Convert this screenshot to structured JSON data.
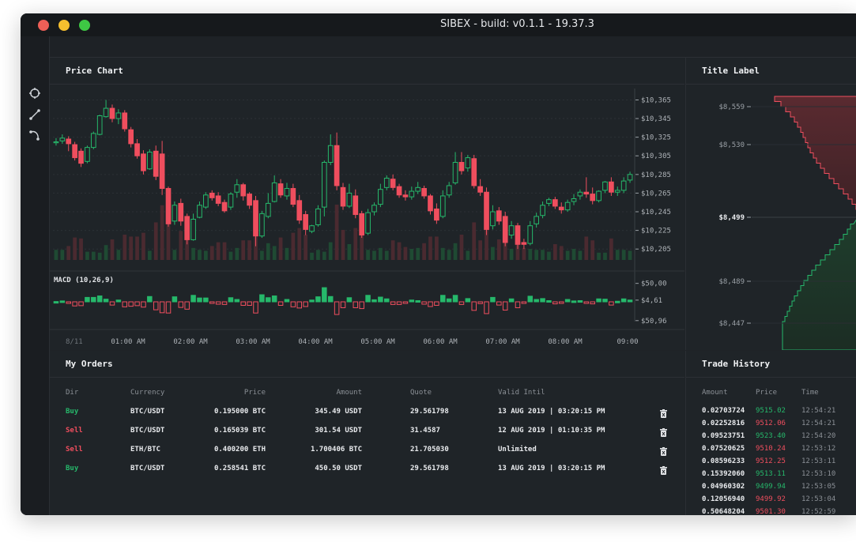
{
  "window": {
    "title": "SIBEX - build: v0.1.1 - 19.37.3",
    "traffic_lights": {
      "close": "#ee5f57",
      "minimize": "#f6bf2e",
      "zoom": "#3ec744"
    }
  },
  "toolbar": {
    "tools": [
      "crosshair-icon",
      "line-tool-icon",
      "curve-tool-icon"
    ]
  },
  "colors": {
    "up": "#26b86b",
    "down": "#ef4e5e",
    "background": "#1f2327"
  },
  "price_chart": {
    "title": "Price Chart",
    "macd_label": "MACD (10,26,9)",
    "price_ticks": [
      "$10,365",
      "$10,345",
      "$10,325",
      "$10,305",
      "$10,285",
      "$10,265",
      "$10,245",
      "$10,225",
      "$10,205"
    ],
    "macd_ticks": [
      "$50,00",
      "$4,61",
      "$50,96"
    ],
    "time_ticks": [
      "8/11",
      "01:00 AM",
      "02:00 AM",
      "03:00 AM",
      "04:00 AM",
      "05:00 AM",
      "06:00 AM",
      "07:00 AM",
      "08:00 AM",
      "09:00"
    ]
  },
  "chart_data": {
    "type": "candlestick",
    "title": "Price Chart",
    "ylim": [
      10195,
      10373
    ],
    "x_ticks": [
      "8/11",
      "01:00 AM",
      "02:00 AM",
      "03:00 AM",
      "04:00 AM",
      "05:00 AM",
      "06:00 AM",
      "07:00 AM",
      "08:00 AM",
      "09:00"
    ],
    "candles": [
      [
        10319,
        10324,
        10320,
        10316
      ],
      [
        10321,
        10328,
        10324,
        10318
      ],
      [
        10323,
        10326,
        10318,
        10310
      ],
      [
        10317,
        10320,
        10303,
        10300
      ],
      [
        10310,
        10313,
        10297,
        10293
      ],
      [
        10299,
        10316,
        10314,
        10297
      ],
      [
        10314,
        10331,
        10329,
        10312
      ],
      [
        10328,
        10349,
        10348,
        10327
      ],
      [
        10347,
        10365,
        10356,
        10346
      ],
      [
        10356,
        10360,
        10345,
        10341
      ],
      [
        10345,
        10355,
        10351,
        10339
      ],
      [
        10351,
        10354,
        10334,
        10331
      ],
      [
        10333,
        10336,
        10318,
        10314
      ],
      [
        10318,
        10323,
        10305,
        10302
      ],
      [
        10307,
        10311,
        10289,
        10285
      ],
      [
        10291,
        10312,
        10309,
        10290
      ],
      [
        10310,
        10316,
        10283,
        10279
      ],
      [
        10307,
        10321,
        10270,
        10263
      ],
      [
        10270,
        10272,
        10232,
        10229
      ],
      [
        10235,
        10256,
        10252,
        10231
      ],
      [
        10254,
        10259,
        10235,
        10230
      ],
      [
        10240,
        10243,
        10215,
        10210
      ],
      [
        10215,
        10243,
        10237,
        10214
      ],
      [
        10239,
        10256,
        10252,
        10238
      ],
      [
        10250,
        10266,
        10263,
        10248
      ],
      [
        10265,
        10268,
        10260,
        10257
      ],
      [
        10262,
        10266,
        10254,
        10251
      ],
      [
        10255,
        10258,
        10246,
        10244
      ],
      [
        10250,
        10266,
        10264,
        10247
      ],
      [
        10266,
        10280,
        10274,
        10260
      ],
      [
        10274,
        10276,
        10262,
        10257
      ],
      [
        10264,
        10266,
        10252,
        10248
      ],
      [
        10257,
        10262,
        10219,
        10208
      ],
      [
        10219,
        10246,
        10243,
        10217
      ],
      [
        10240,
        10265,
        10254,
        10238
      ],
      [
        10256,
        10284,
        10276,
        10255
      ],
      [
        10275,
        10280,
        10263,
        10260
      ],
      [
        10262,
        10276,
        10270,
        10258
      ],
      [
        10270,
        10275,
        10253,
        10250
      ],
      [
        10257,
        10263,
        10236,
        10232
      ],
      [
        10242,
        10246,
        10226,
        10220
      ],
      [
        10224,
        10231,
        10230,
        10222
      ],
      [
        10231,
        10252,
        10248,
        10229
      ],
      [
        10250,
        10300,
        10298,
        10240
      ],
      [
        10298,
        10328,
        10316,
        10295
      ],
      [
        10316,
        10330,
        10273,
        10268
      ],
      [
        10271,
        10276,
        10251,
        10247
      ],
      [
        10251,
        10275,
        10265,
        10249
      ],
      [
        10262,
        10269,
        10242,
        10238
      ],
      [
        10243,
        10246,
        10220,
        10217
      ],
      [
        10222,
        10248,
        10244,
        10220
      ],
      [
        10245,
        10255,
        10252,
        10241
      ],
      [
        10253,
        10275,
        10269,
        10250
      ],
      [
        10271,
        10284,
        10281,
        10268
      ],
      [
        10280,
        10285,
        10271,
        10268
      ],
      [
        10272,
        10275,
        10263,
        10260
      ],
      [
        10263,
        10268,
        10261,
        10257
      ],
      [
        10261,
        10272,
        10267,
        10258
      ],
      [
        10267,
        10277,
        10271,
        10264
      ],
      [
        10270,
        10273,
        10262,
        10259
      ],
      [
        10262,
        10264,
        10246,
        10242
      ],
      [
        10248,
        10254,
        10236,
        10232
      ],
      [
        10240,
        10268,
        10262,
        10238
      ],
      [
        10263,
        10277,
        10273,
        10260
      ],
      [
        10276,
        10309,
        10298,
        10274
      ],
      [
        10298,
        10309,
        10289,
        10285
      ],
      [
        10292,
        10306,
        10303,
        10288
      ],
      [
        10302,
        10306,
        10273,
        10270
      ],
      [
        10272,
        10280,
        10266,
        10262
      ],
      [
        10266,
        10271,
        10226,
        10220
      ],
      [
        10230,
        10252,
        10245,
        10226
      ],
      [
        10246,
        10250,
        10235,
        10231
      ],
      [
        10240,
        10245,
        10212,
        10208
      ],
      [
        10220,
        10235,
        10230,
        10216
      ],
      [
        10230,
        10233,
        10210,
        10205
      ],
      [
        10212,
        10216,
        10210,
        10205
      ],
      [
        10211,
        10235,
        10230,
        10209
      ],
      [
        10232,
        10244,
        10240,
        10228
      ],
      [
        10241,
        10256,
        10252,
        10238
      ],
      [
        10254,
        10260,
        10258,
        10251
      ],
      [
        10258,
        10261,
        10251,
        10248
      ],
      [
        10250,
        10255,
        10247,
        10243
      ],
      [
        10247,
        10258,
        10255,
        10245
      ],
      [
        10256,
        10264,
        10259,
        10252
      ],
      [
        10262,
        10269,
        10266,
        10258
      ],
      [
        10266,
        10282,
        10264,
        10260
      ],
      [
        10264,
        10271,
        10257,
        10253
      ],
      [
        10257,
        10268,
        10267,
        10255
      ],
      [
        10268,
        10278,
        10277,
        10265
      ],
      [
        10277,
        10282,
        10266,
        10262
      ],
      [
        10266,
        10272,
        10268,
        10262
      ],
      [
        10268,
        10282,
        10278,
        10265
      ],
      [
        10279,
        10288,
        10285,
        10276
      ]
    ],
    "macd_ylim": [
      -60,
      60
    ],
    "macd_ticks": [
      "$50,00",
      "$4,61",
      "$50,96"
    ]
  },
  "order_book": {
    "title": "Title Label",
    "price_labels": [
      "$8,559",
      "$8,530",
      "$8,499",
      "$8,489",
      "$8,447"
    ],
    "mid_price": "$8,499"
  },
  "my_orders": {
    "title": "My Orders",
    "columns": [
      "Dir",
      "Currency",
      "Price",
      "Amount",
      "Quote",
      "Valid Intil"
    ],
    "rows": [
      {
        "dir": "Buy",
        "currency": "BTC/USDT",
        "price": "0.195000 BTC",
        "amount": "345.49 USDT",
        "quote": "29.561798",
        "valid": "13 AUG 2019 | 03:20:15 PM"
      },
      {
        "dir": "Sell",
        "currency": "BTC/USDT",
        "price": "0.165039 BTC",
        "amount": "301.54 USDT",
        "quote": "31.4587",
        "valid": "12 AUG 2019 | 01:10:35 PM"
      },
      {
        "dir": "Sell",
        "currency": "ETH/BTC",
        "price": "0.400200 ETH",
        "amount": "1.700406 BTC",
        "quote": "21.705030",
        "valid": "Unlimited"
      },
      {
        "dir": "Buy",
        "currency": "BTC/USDT",
        "price": "0.258541 BTC",
        "amount": "450.50 USDT",
        "quote": "29.561798",
        "valid": "13 AUG 2019 | 03:20:15 PM"
      }
    ]
  },
  "trade_history": {
    "title": "Trade History",
    "columns": [
      "Amount",
      "Price",
      "Time"
    ],
    "rows": [
      {
        "amount": "0.02703724",
        "price": "9515.02",
        "time": "12:54:21",
        "side": "buy"
      },
      {
        "amount": "0.02252816",
        "price": "9512.06",
        "time": "12:54:21",
        "side": "sell"
      },
      {
        "amount": "0.09523751",
        "price": "9523.40",
        "time": "12:54:20",
        "side": "buy"
      },
      {
        "amount": "0.07520625",
        "price": "9510.24",
        "time": "12:53:12",
        "side": "sell"
      },
      {
        "amount": "0.08596233",
        "price": "9512.25",
        "time": "12:53:11",
        "side": "sell"
      },
      {
        "amount": "0.15392060",
        "price": "9513.11",
        "time": "12:53:10",
        "side": "buy"
      },
      {
        "amount": "0.04960302",
        "price": "9499.94",
        "time": "12:53:05",
        "side": "buy"
      },
      {
        "amount": "0.12056940",
        "price": "9499.92",
        "time": "12:53:04",
        "side": "sell"
      },
      {
        "amount": "0.50648204",
        "price": "9501.30",
        "time": "12:52:59",
        "side": "sell"
      }
    ]
  }
}
